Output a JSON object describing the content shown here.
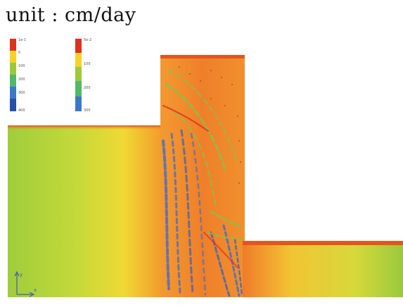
{
  "title": "unit : cm/day",
  "legend_left": {
    "ticks": [
      "1e-1",
      "0",
      "100",
      "200",
      "300",
      "400"
    ],
    "colors": [
      "#e0301e",
      "#f5d327",
      "#9ec93a",
      "#4fb86b",
      "#3b78c9",
      "#2a4fa8"
    ]
  },
  "legend_right": {
    "ticks": [
      "5e-2",
      "",
      "100",
      "200",
      "300"
    ],
    "colors": [
      "#e0301e",
      "#f5d327",
      "#9ec93a",
      "#4fb86b",
      "#3b78c9"
    ]
  },
  "axes": {
    "y_label": "y",
    "x_label": "x"
  },
  "colors": {
    "low": "#a6cf3c",
    "mid": "#f2e23a",
    "high": "#ef8a2d",
    "peak": "#e34a1c",
    "band_blue": "#4a6fc0",
    "band_green": "#86c24a"
  }
}
